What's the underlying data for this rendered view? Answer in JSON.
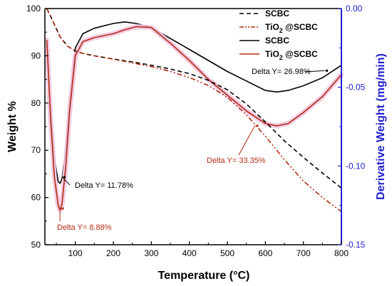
{
  "chart_data": {
    "type": "line",
    "xlabel": "Temperature (°C)",
    "ylabel_left": "Weight %",
    "ylabel_right": "Derivative Weight (mg/min)",
    "xlim": [
      20,
      800
    ],
    "ylim_left": [
      50,
      100
    ],
    "ylim_right": [
      -0.15,
      0.0
    ],
    "x_ticks": [
      "100",
      "200",
      "300",
      "400",
      "500",
      "600",
      "700",
      "800"
    ],
    "x_tick_values": [
      100,
      200,
      300,
      400,
      500,
      600,
      700,
      800
    ],
    "y_ticks_left": [
      "50",
      "60",
      "70",
      "80",
      "90",
      "100"
    ],
    "y_tick_values_left": [
      50,
      60,
      70,
      80,
      90,
      100
    ],
    "y_ticks_right": [
      "-0.15",
      "-0.10",
      "-0.05",
      "0.00"
    ],
    "y_tick_values_right": [
      -0.15,
      -0.1,
      -0.05,
      0.0
    ],
    "colors": {
      "scbc": "#000000",
      "tio2": "#b22a10",
      "tio2_glow": "#f3c6e2",
      "right_axis": "#1f1fcf"
    },
    "series": [
      {
        "name": "SCBC",
        "axis": "left",
        "style": "dash",
        "color": "#000000",
        "x": [
          25,
          40,
          60,
          80,
          100,
          120,
          150,
          200,
          250,
          300,
          350,
          400,
          450,
          500,
          550,
          600,
          650,
          700,
          750,
          800
        ],
        "y": [
          100,
          97.5,
          94,
          92,
          91,
          90.5,
          90,
          89.3,
          88.7,
          88,
          87.2,
          86.2,
          84.8,
          82.8,
          79.8,
          76,
          72,
          68.5,
          65.2,
          62
        ]
      },
      {
        "name": "TiO2 @SCBC",
        "axis": "left",
        "style": "dashdotdot",
        "color": "#b22a10",
        "x": [
          25,
          40,
          60,
          80,
          100,
          120,
          150,
          200,
          250,
          300,
          350,
          400,
          450,
          500,
          550,
          600,
          650,
          700,
          750,
          800
        ],
        "y": [
          100,
          97.5,
          94,
          92,
          91,
          90.5,
          90,
          89.3,
          88.5,
          87.7,
          86.7,
          85.4,
          83.7,
          81.2,
          77.5,
          73,
          68,
          63.5,
          60,
          57
        ]
      },
      {
        "name": "SCBC",
        "axis": "right",
        "style": "solid",
        "color": "#000000",
        "x": [
          25,
          35,
          45,
          55,
          60,
          65,
          75,
          85,
          100,
          120,
          150,
          200,
          230,
          260,
          300,
          350,
          400,
          450,
          500,
          550,
          600,
          630,
          660,
          700,
          750,
          800
        ],
        "y": [
          -0.02,
          -0.065,
          -0.095,
          -0.11,
          -0.111,
          -0.108,
          -0.09,
          -0.06,
          -0.025,
          -0.016,
          -0.0125,
          -0.0095,
          -0.0085,
          -0.0095,
          -0.012,
          -0.019,
          -0.026,
          -0.033,
          -0.04,
          -0.046,
          -0.052,
          -0.053,
          -0.052,
          -0.049,
          -0.044,
          -0.036
        ]
      },
      {
        "name": "TiO2 @SCBC",
        "axis": "right",
        "style": "solid",
        "color": "#b22a10",
        "x": [
          25,
          35,
          45,
          55,
          60,
          65,
          75,
          85,
          100,
          120,
          150,
          200,
          230,
          260,
          300,
          350,
          400,
          450,
          500,
          550,
          600,
          630,
          660,
          700,
          750,
          800
        ],
        "y": [
          -0.02,
          -0.07,
          -0.107,
          -0.125,
          -0.128,
          -0.124,
          -0.1,
          -0.065,
          -0.03,
          -0.021,
          -0.0185,
          -0.016,
          -0.0135,
          -0.0115,
          -0.012,
          -0.022,
          -0.033,
          -0.045,
          -0.055,
          -0.065,
          -0.073,
          -0.0745,
          -0.073,
          -0.066,
          -0.056,
          -0.042
        ]
      }
    ],
    "annotations": [
      {
        "text": "Delta Y= 11.78%",
        "color": "#000000",
        "x": 65,
        "y_right": -0.107
      },
      {
        "text": "Delta Y= 8.88%",
        "color": "#b22a10",
        "x": 60,
        "y_right": -0.127
      },
      {
        "text": "Delta Y= 26.98%",
        "color": "#000000",
        "x": 755,
        "y_right": -0.0395
      },
      {
        "text": "Delta Y= 33.35%",
        "color": "#b22a10",
        "x": 572,
        "y_right": -0.0745
      }
    ],
    "legend": {
      "placement": "top-right",
      "entries": [
        {
          "label": "SCBC",
          "style": "dash",
          "color": "#000000"
        },
        {
          "label_main": "TiO",
          "label_sub": "2",
          "label_rest": " @SCBC",
          "style": "dashdotdot",
          "color": "#b22a10"
        },
        {
          "label": "SCBC",
          "style": "solid",
          "color": "#000000"
        },
        {
          "label_main": "TiO",
          "label_sub": "2",
          "label_rest": " @SCBC",
          "style": "solid",
          "color": "#b22a10"
        }
      ]
    }
  }
}
